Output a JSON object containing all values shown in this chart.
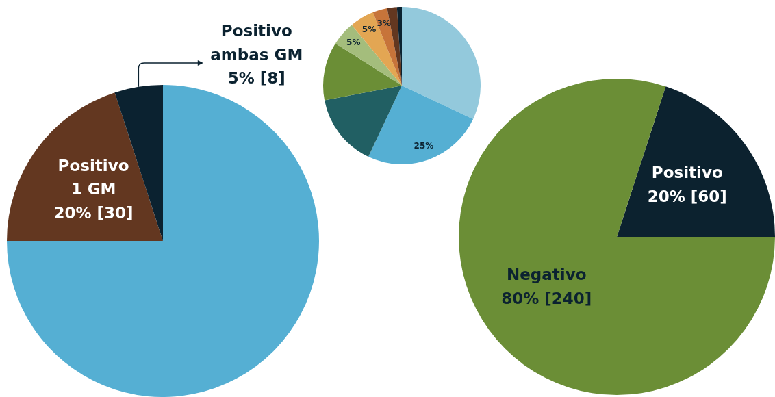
{
  "chart_data": [
    {
      "type": "pie",
      "categories": [
        null,
        "Positivo 1 GM",
        "Positivo ambas GM"
      ],
      "values": [
        75,
        20,
        5
      ],
      "colors": [
        "#55afd3",
        "#633720",
        "#0b2230"
      ],
      "value_labels": [
        null,
        "20% [30]",
        "5% [8]"
      ]
    },
    {
      "type": "pie",
      "categories": [
        null,
        null,
        null,
        null,
        null,
        null,
        null,
        null,
        null
      ],
      "values": [
        32,
        25,
        15,
        12,
        5,
        5,
        3,
        2,
        1
      ],
      "colors": [
        "#93c9dc",
        "#55afd3",
        "#215f63",
        "#6b8e36",
        "#a4bd7c",
        "#e3a653",
        "#c7743a",
        "#633720",
        "#0b2230"
      ],
      "value_labels": [
        null,
        "25%",
        null,
        null,
        "5%",
        "5%",
        "3%",
        null,
        null
      ]
    },
    {
      "type": "pie",
      "categories": [
        "Positivo",
        "Negativo"
      ],
      "values": [
        20,
        80
      ],
      "colors": [
        "#0c222f",
        "#6b8e36"
      ],
      "value_labels": [
        "20% [60]",
        "80% [240]"
      ]
    }
  ]
}
